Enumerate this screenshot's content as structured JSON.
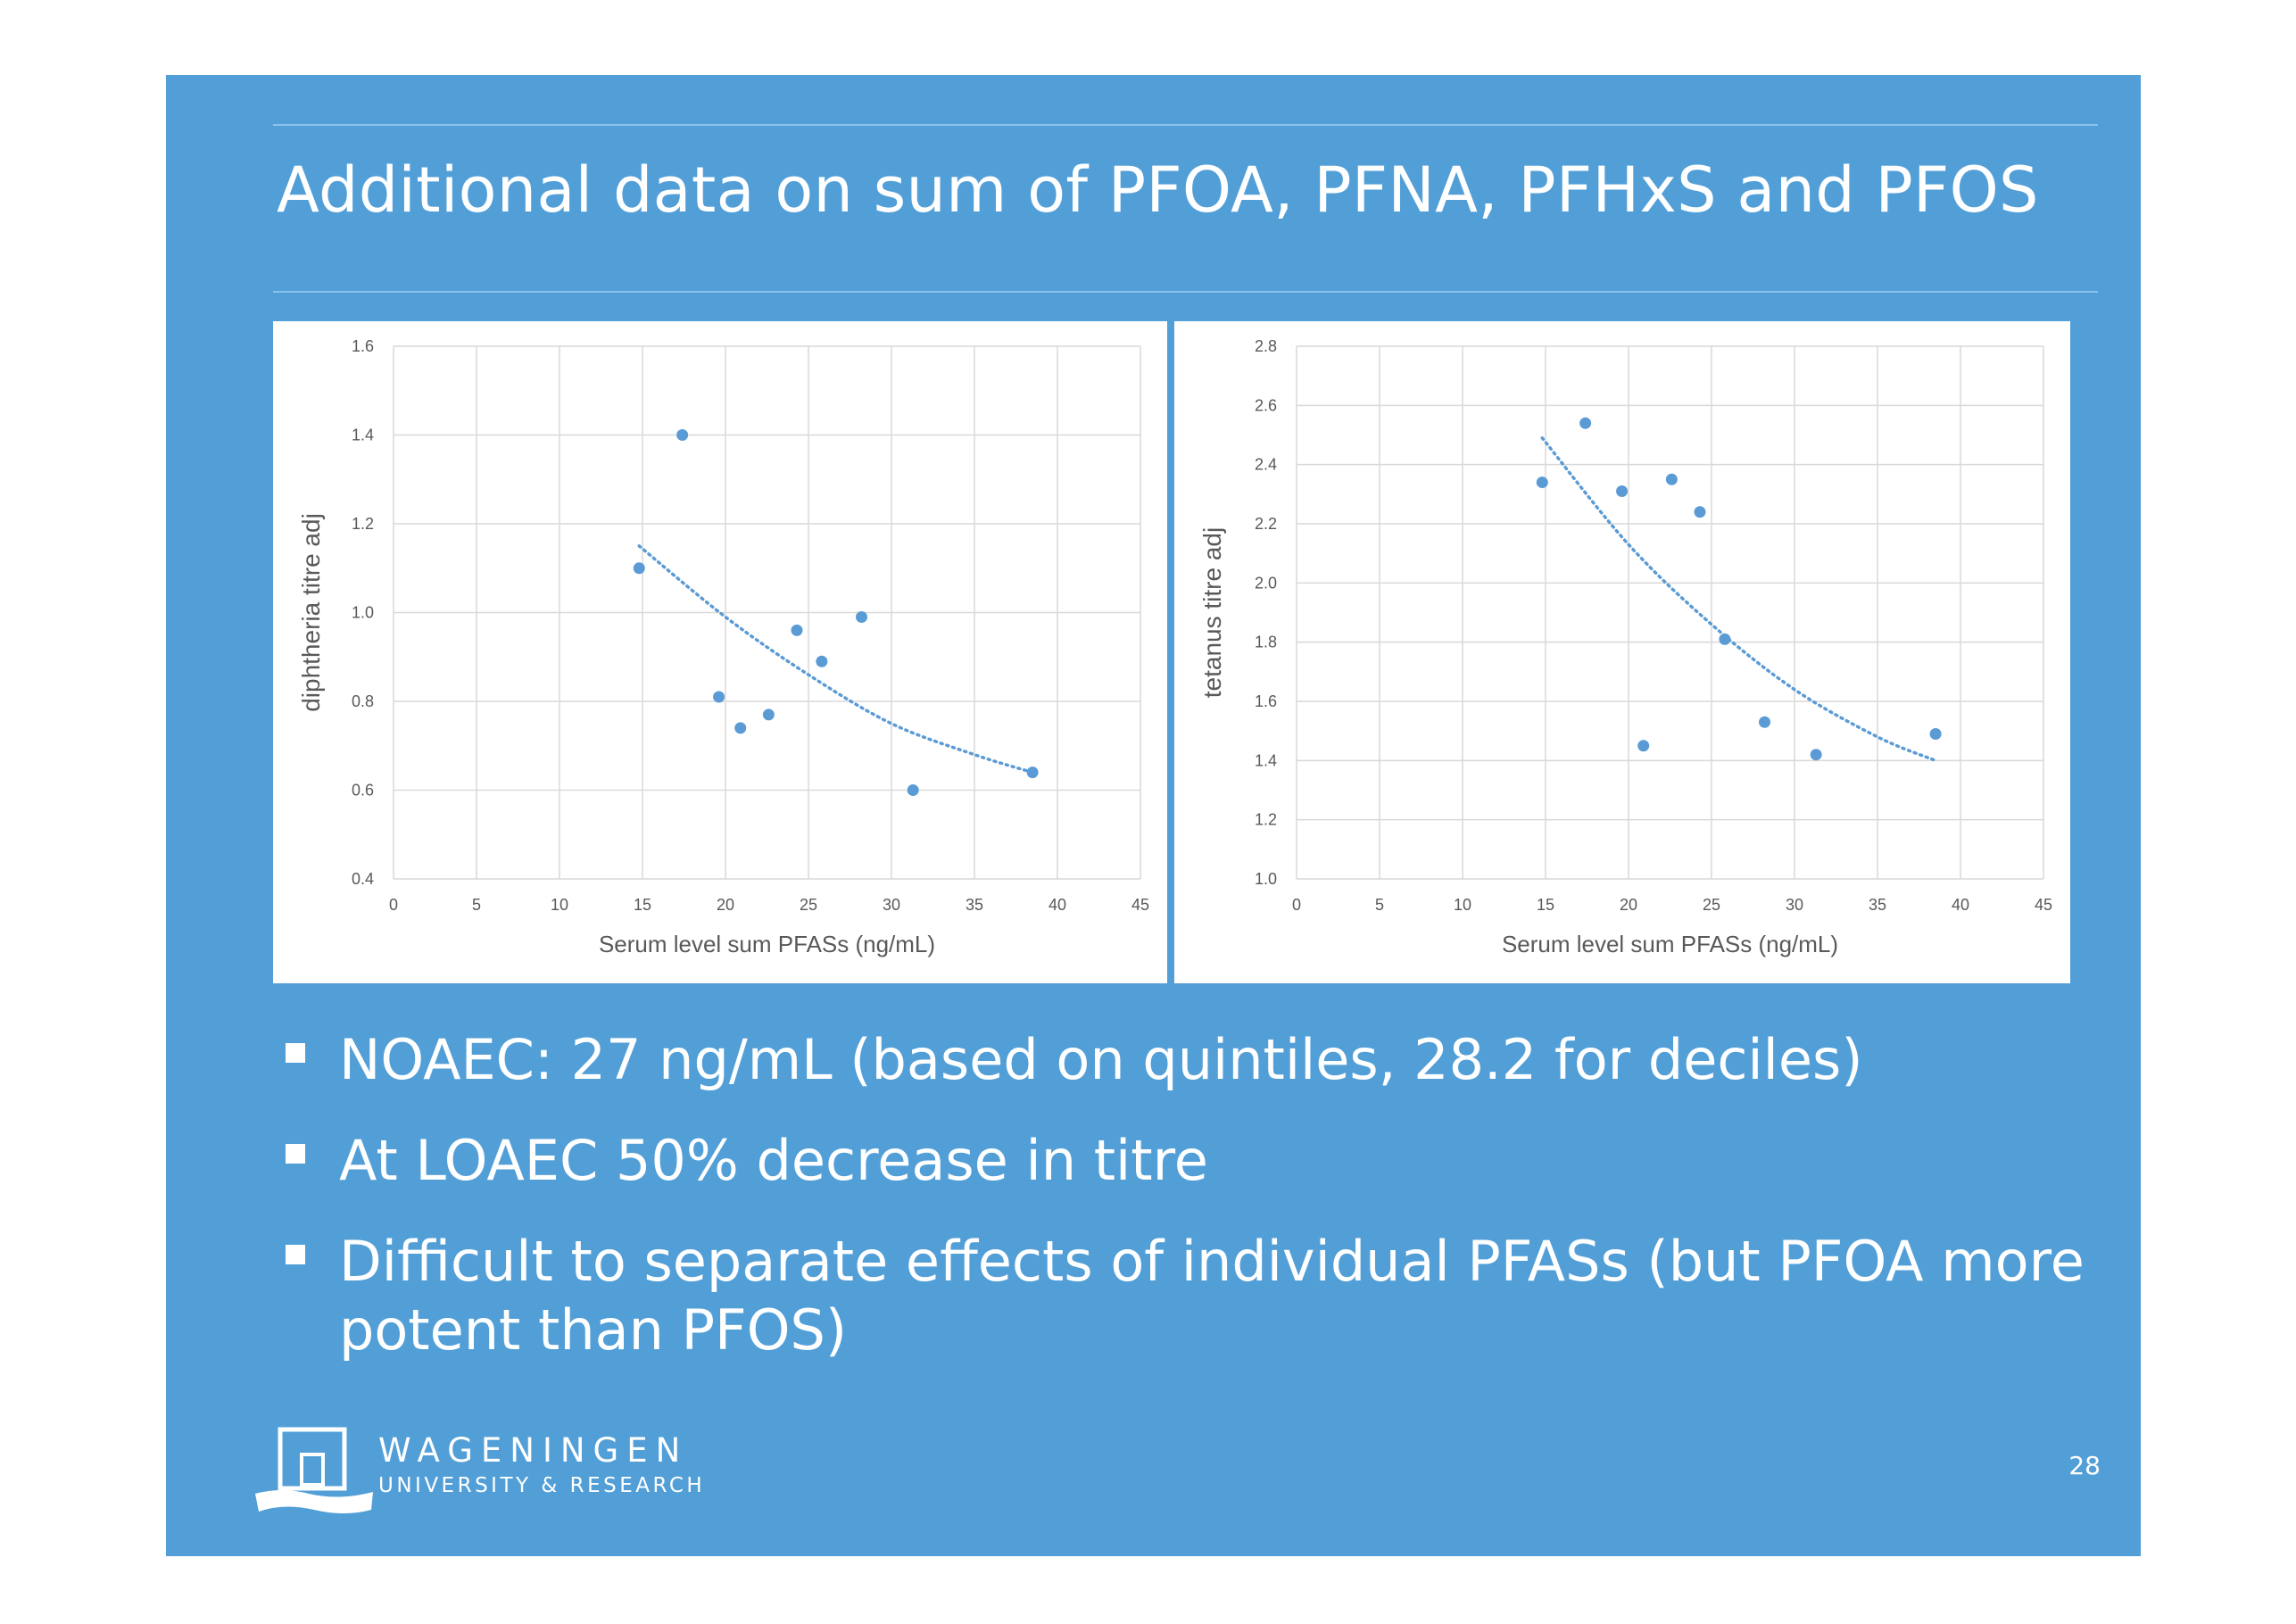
{
  "slide": {
    "title": "Additional data on sum of PFOA, PFNA, PFHxS and PFOS",
    "page_number": "28",
    "background_color": "#529fd8"
  },
  "bullets": [
    "NOAEC: 27 ng/mL (based on quintiles, 28.2 for deciles)",
    "At LOAEC 50% decrease in titre",
    "Difficult to separate effects of individual PFASs (but PFOA more potent than PFOS)"
  ],
  "logo": {
    "name": "WAGENINGEN",
    "subtitle": "UNIVERSITY & RESEARCH",
    "icon": "building-doorway-logo-icon"
  },
  "chart_data": [
    {
      "type": "scatter",
      "xlabel": "Serum level sum PFASs (ng/mL)",
      "ylabel": "diphtheria titre adj",
      "xlim": [
        0,
        45
      ],
      "ylim": [
        0.4,
        1.6
      ],
      "xticks": [
        "0",
        "5",
        "10",
        "15",
        "20",
        "25",
        "30",
        "35",
        "40",
        "45"
      ],
      "yticks": [
        "0.4",
        "0.6",
        "0.8",
        "1.0",
        "1.2",
        "1.4",
        "1.6"
      ],
      "grid": true,
      "point_color": "#5b9bd5",
      "points": [
        {
          "x": 14.8,
          "y": 1.1
        },
        {
          "x": 17.4,
          "y": 1.4
        },
        {
          "x": 19.6,
          "y": 0.81
        },
        {
          "x": 20.9,
          "y": 0.74
        },
        {
          "x": 22.6,
          "y": 0.77
        },
        {
          "x": 24.3,
          "y": 0.96
        },
        {
          "x": 25.8,
          "y": 0.89
        },
        {
          "x": 28.2,
          "y": 0.99
        },
        {
          "x": 31.3,
          "y": 0.6
        },
        {
          "x": 38.5,
          "y": 0.64
        }
      ],
      "trendline": {
        "style": "dotted",
        "type": "polynomial",
        "x": [
          14.8,
          20,
          25,
          30,
          35,
          38.5
        ],
        "y": [
          1.15,
          0.99,
          0.86,
          0.75,
          0.68,
          0.64
        ]
      }
    },
    {
      "type": "scatter",
      "xlabel": "Serum level sum PFASs (ng/mL)",
      "ylabel": "tetanus titre adj",
      "xlim": [
        0,
        45
      ],
      "ylim": [
        1.0,
        2.8
      ],
      "xticks": [
        "0",
        "5",
        "10",
        "15",
        "20",
        "25",
        "30",
        "35",
        "40",
        "45"
      ],
      "yticks": [
        "1.0",
        "1.2",
        "1.4",
        "1.6",
        "1.8",
        "2.0",
        "2.2",
        "2.4",
        "2.6",
        "2.8"
      ],
      "grid": true,
      "point_color": "#5b9bd5",
      "points": [
        {
          "x": 14.8,
          "y": 2.34
        },
        {
          "x": 17.4,
          "y": 2.54
        },
        {
          "x": 19.6,
          "y": 2.31
        },
        {
          "x": 20.9,
          "y": 1.45
        },
        {
          "x": 22.6,
          "y": 2.35
        },
        {
          "x": 24.3,
          "y": 2.24
        },
        {
          "x": 25.8,
          "y": 1.81
        },
        {
          "x": 28.2,
          "y": 1.53
        },
        {
          "x": 31.3,
          "y": 1.42
        },
        {
          "x": 38.5,
          "y": 1.49
        }
      ],
      "trendline": {
        "style": "dotted",
        "type": "polynomial",
        "x": [
          14.8,
          20,
          25,
          30,
          35,
          38.5
        ],
        "y": [
          2.49,
          2.13,
          1.86,
          1.64,
          1.48,
          1.4
        ]
      }
    }
  ]
}
